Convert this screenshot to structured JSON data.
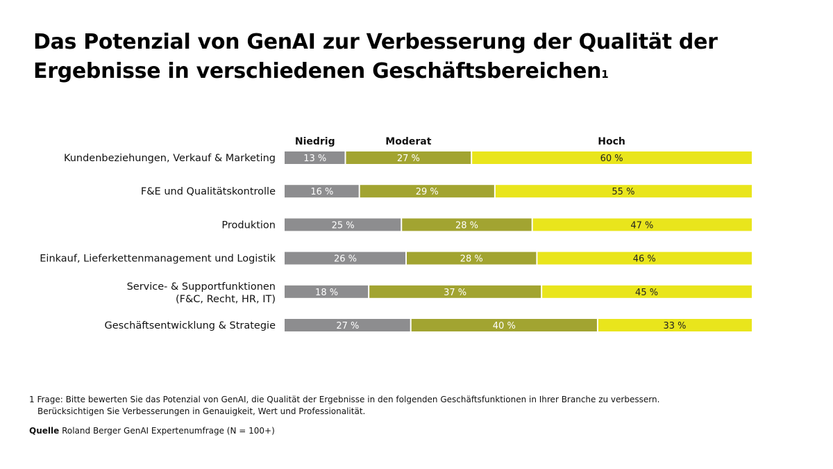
{
  "title": "Das Potenzial von GenAI zur Verbesserung der Qualität der Ergebnisse in verschiedenen Geschäftsbereichen",
  "title_footnote_marker": "1",
  "chart_data": {
    "type": "bar",
    "orientation": "horizontal",
    "stacked": true,
    "unit": "%",
    "categories": [
      "Kundenbeziehungen, Verkauf & Marketing",
      "F&E und Qualitätskontrolle",
      "Produktion",
      "Einkauf, Lieferkettenmanagement und Logistik",
      "Service- & Supportfunktionen (F&C, Recht, HR, IT)",
      "Geschäftsentwicklung & Strategie"
    ],
    "series": [
      {
        "name": "Niedrig",
        "color": "#8d8d8f",
        "values": [
          13,
          16,
          25,
          26,
          18,
          27
        ]
      },
      {
        "name": "Moderat",
        "color": "#a2a431",
        "values": [
          27,
          29,
          28,
          28,
          37,
          40
        ]
      },
      {
        "name": "Hoch",
        "color": "#e9e51c",
        "values": [
          60,
          55,
          47,
          46,
          45,
          33
        ]
      }
    ],
    "xlim": [
      0,
      100
    ],
    "grid": false,
    "legend": "top"
  },
  "footnote": {
    "marker": "1",
    "line1": "Frage: Bitte bewerten Sie das Potenzial von GenAI, die Qualität der Ergebnisse in den folgenden Geschäftsfunktionen in Ihrer Branche zu verbessern.",
    "line2": "Berücksichtigen Sie Verbesserungen in Genauigkeit, Wert und Professionalität."
  },
  "source": {
    "label": "Quelle",
    "text": "Roland Berger GenAI Expertenumfrage (N = 100+)"
  }
}
